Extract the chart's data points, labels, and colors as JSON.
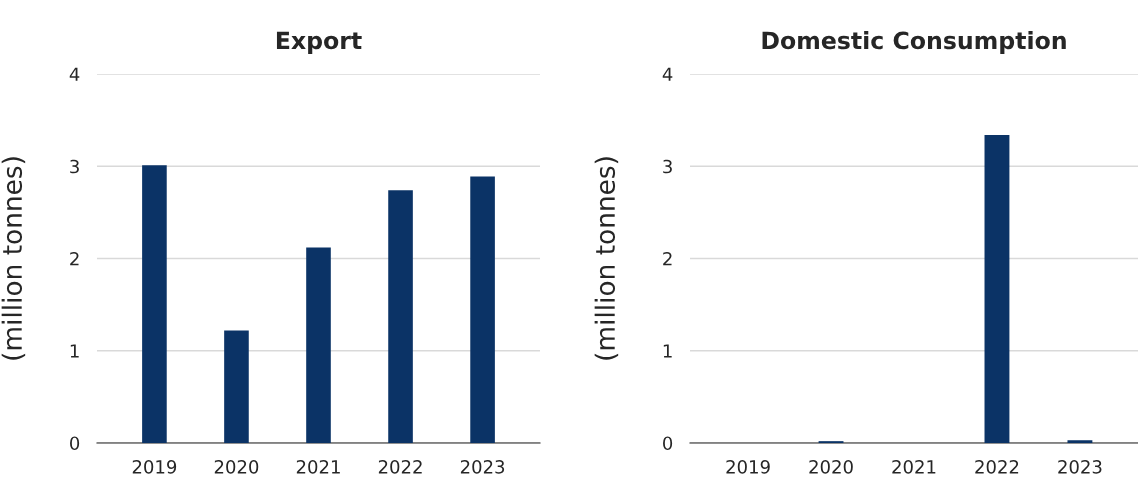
{
  "chart_data": [
    {
      "type": "bar",
      "title": "Export",
      "ylabel": "(million tonnes)",
      "categories": [
        "2019",
        "2020",
        "2021",
        "2022",
        "2023"
      ],
      "values": [
        3.01,
        1.22,
        2.12,
        2.74,
        2.89
      ],
      "color": "#0b3366",
      "ylim": [
        0,
        4
      ],
      "yticks": [
        0,
        1,
        2,
        3,
        4
      ],
      "grid": "y"
    },
    {
      "type": "bar",
      "title": "Domestic Consumption",
      "ylabel": "(million tonnes)",
      "categories": [
        "2019",
        "2020",
        "2021",
        "2022",
        "2023"
      ],
      "values": [
        null,
        0.02,
        null,
        3.34,
        0.03
      ],
      "color": "#0b3366",
      "ylim": [
        0,
        4
      ],
      "yticks": [
        0,
        1,
        2,
        3,
        4
      ],
      "grid": "y"
    }
  ]
}
